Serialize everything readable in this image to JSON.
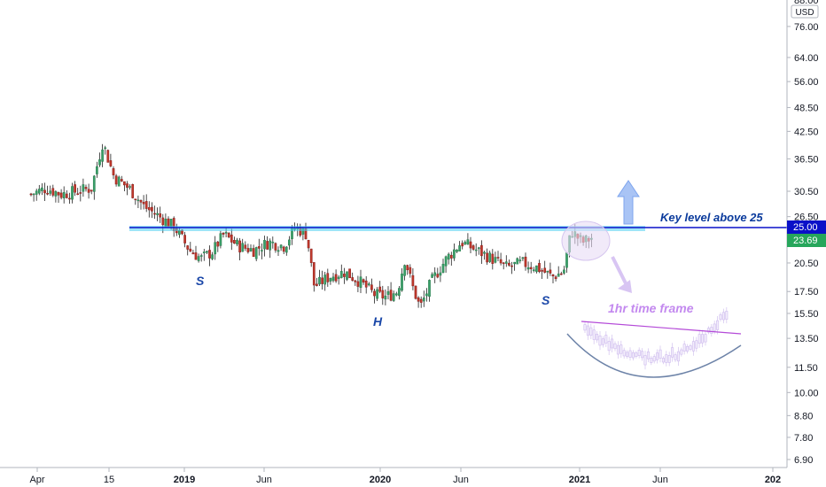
{
  "chart_data": {
    "type": "candlestick",
    "currency": "USD",
    "y_axis": {
      "scale": "log",
      "ylim": [
        6.6,
        88
      ],
      "ticks": [
        "76.00",
        "64.00",
        "56.00",
        "48.50",
        "42.50",
        "36.50",
        "30.50",
        "26.50",
        "20.50",
        "17.50",
        "15.50",
        "13.50",
        "11.50",
        "10.00",
        "8.80",
        "7.80",
        "6.90"
      ],
      "top_partial": "88.00"
    },
    "x_axis": {
      "ticks": [
        {
          "label": "Apr",
          "bold": false
        },
        {
          "label": "15",
          "bold": false
        },
        {
          "label": "2019",
          "bold": true
        },
        {
          "label": "Jun",
          "bold": false
        },
        {
          "label": "2020",
          "bold": true
        },
        {
          "label": "Jun",
          "bold": false
        },
        {
          "label": "2021",
          "bold": true
        },
        {
          "label": "Jun",
          "bold": false
        },
        {
          "label": "202",
          "bold": true
        }
      ]
    },
    "price_labels": [
      {
        "value": "25.00",
        "color": "#0a10c8"
      },
      {
        "value": "23.69",
        "color": "#26a65b"
      }
    ],
    "key_level": {
      "value": 25.0,
      "label": "Key level above 25",
      "color": "#0a10c8"
    },
    "pattern_labels": [
      "S",
      "H",
      "S"
    ],
    "inset_label": "1hr time frame",
    "series": [
      {
        "t": 0,
        "v": 30
      },
      {
        "t": 0.02,
        "v": 31
      },
      {
        "t": 0.04,
        "v": 30
      },
      {
        "t": 0.06,
        "v": 30.5
      },
      {
        "t": 0.08,
        "v": 31
      },
      {
        "t": 0.095,
        "v": 40
      },
      {
        "t": 0.11,
        "v": 33
      },
      {
        "t": 0.13,
        "v": 31
      },
      {
        "t": 0.15,
        "v": 28
      },
      {
        "t": 0.17,
        "v": 26.5
      },
      {
        "t": 0.19,
        "v": 25
      },
      {
        "t": 0.21,
        "v": 22
      },
      {
        "t": 0.225,
        "v": 21
      },
      {
        "t": 0.24,
        "v": 21.8
      },
      {
        "t": 0.255,
        "v": 24
      },
      {
        "t": 0.275,
        "v": 22.5
      },
      {
        "t": 0.295,
        "v": 22
      },
      {
        "t": 0.315,
        "v": 23
      },
      {
        "t": 0.335,
        "v": 22.5
      },
      {
        "t": 0.35,
        "v": 25
      },
      {
        "t": 0.365,
        "v": 24
      },
      {
        "t": 0.375,
        "v": 18
      },
      {
        "t": 0.395,
        "v": 19
      },
      {
        "t": 0.415,
        "v": 19.5
      },
      {
        "t": 0.435,
        "v": 18.5
      },
      {
        "t": 0.455,
        "v": 17.2
      },
      {
        "t": 0.47,
        "v": 17
      },
      {
        "t": 0.485,
        "v": 17.5
      },
      {
        "t": 0.495,
        "v": 21
      },
      {
        "t": 0.505,
        "v": 18
      },
      {
        "t": 0.515,
        "v": 16
      },
      {
        "t": 0.53,
        "v": 18.5
      },
      {
        "t": 0.55,
        "v": 21
      },
      {
        "t": 0.57,
        "v": 23
      },
      {
        "t": 0.59,
        "v": 22
      },
      {
        "t": 0.61,
        "v": 21
      },
      {
        "t": 0.63,
        "v": 20
      },
      {
        "t": 0.65,
        "v": 20.5
      },
      {
        "t": 0.67,
        "v": 20
      },
      {
        "t": 0.69,
        "v": 19
      },
      {
        "t": 0.705,
        "v": 19.5
      },
      {
        "t": 0.715,
        "v": 24.5
      },
      {
        "t": 0.73,
        "v": 23
      },
      {
        "t": 0.745,
        "v": 23.69
      }
    ]
  }
}
